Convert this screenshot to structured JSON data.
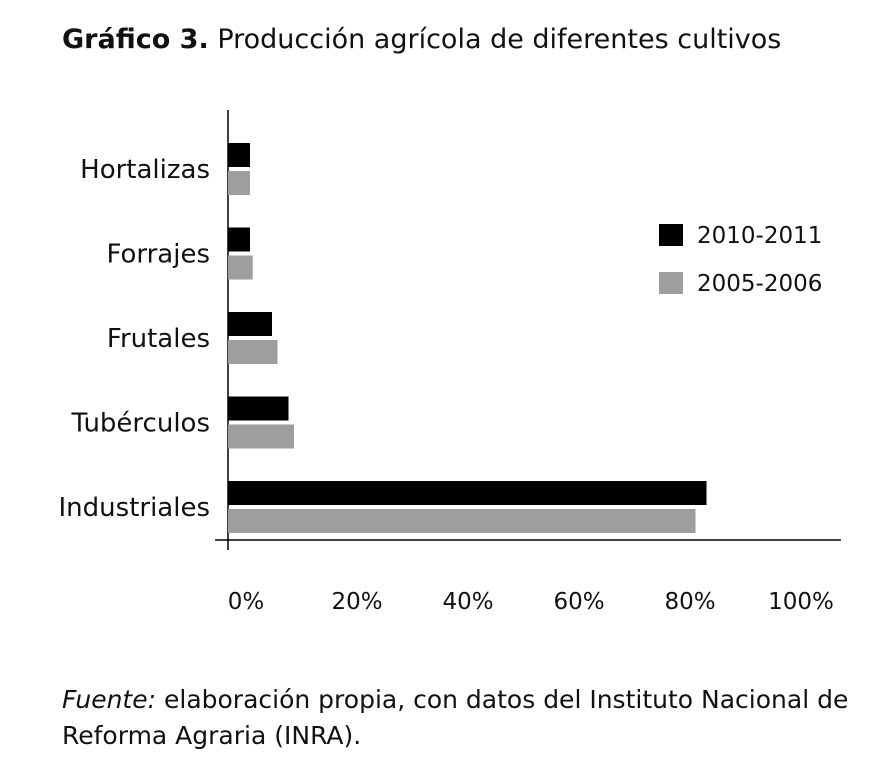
{
  "figure": {
    "label": "Gráfico 3.",
    "title": "Producción agrícola de diferentes cultivos",
    "source_label": "Fuente:",
    "source_text": " elaboración propia, con datos del Instituto Nacional de Reforma Agraria (INRA)."
  },
  "colors": {
    "series_2010": "#000000",
    "series_2005": "#9e9e9e",
    "axis": "#000000",
    "text": "#111111"
  },
  "chart_data": {
    "type": "bar",
    "orientation": "horizontal",
    "categories": [
      "Hortalizas",
      "Forrajes",
      "Frutales",
      "Tubérculos",
      "Industriales"
    ],
    "series": [
      {
        "name": "2010-2011",
        "values": [
          4,
          4,
          8,
          11,
          87
        ]
      },
      {
        "name": "2005-2006",
        "values": [
          4,
          4.5,
          9,
          12,
          85
        ]
      }
    ],
    "xlim": [
      0,
      100
    ],
    "xticks": [
      "0%",
      "20%",
      "40%",
      "60%",
      "80%",
      "100%"
    ],
    "legend_position": "right",
    "grid": false
  }
}
